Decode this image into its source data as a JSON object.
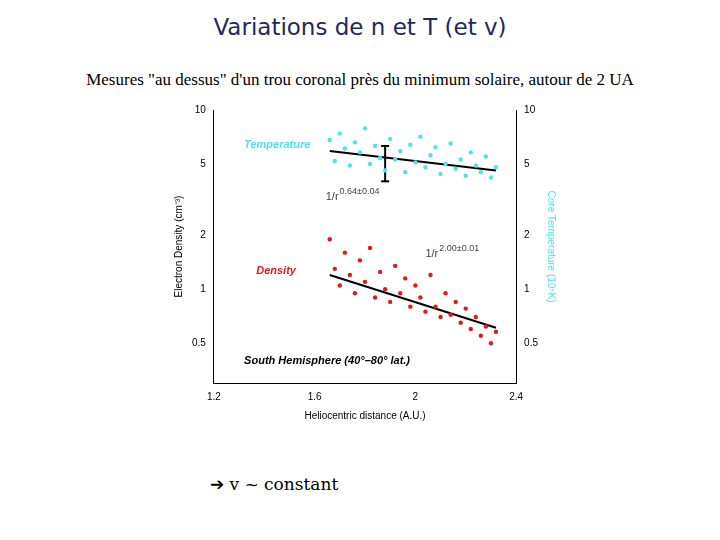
{
  "title": "Variations de n et T (et v)",
  "subtitle": "Mesures \"au dessus\" d'un trou coronal près du minimum solaire, autour de 2 UA",
  "footer": "➔ v ~ constant",
  "chart_data": {
    "type": "scatter",
    "x_label": "Heliocentric distance (A.U.)",
    "y_label": "Electron Density (cm⁻³)",
    "y2_label": "Core Temperature (10⁵K)",
    "annotation": "South Hemisphere (40°–80° lat.)",
    "xlim": [
      1.2,
      2.4
    ],
    "xticks": [
      1.2,
      1.6,
      2,
      2.4
    ],
    "ylim": [
      0.3,
      10
    ],
    "yticks": [
      0.5,
      1,
      2,
      5,
      10
    ],
    "y2lim": [
      0.3,
      10
    ],
    "y2ticks": [
      0.5,
      1,
      2,
      5,
      10
    ],
    "log": "y",
    "grid": false,
    "series": [
      {
        "name": "Temperature",
        "color": "#4fe3ea",
        "axis": "y2",
        "marker": "dot",
        "x": [
          1.66,
          1.68,
          1.7,
          1.72,
          1.74,
          1.76,
          1.78,
          1.8,
          1.82,
          1.84,
          1.86,
          1.88,
          1.9,
          1.92,
          1.94,
          1.96,
          1.98,
          2.0,
          2.02,
          2.04,
          2.06,
          2.08,
          2.1,
          2.12,
          2.14,
          2.16,
          2.18,
          2.2,
          2.22,
          2.24,
          2.26,
          2.28,
          2.3,
          2.32
        ],
        "values": [
          6.8,
          5.2,
          7.4,
          6.1,
          4.9,
          6.6,
          5.8,
          7.9,
          5.0,
          6.3,
          5.4,
          4.6,
          6.9,
          5.3,
          5.9,
          4.5,
          6.4,
          5.1,
          7.1,
          4.8,
          5.6,
          6.2,
          4.4,
          5.0,
          6.5,
          4.7,
          5.3,
          4.3,
          5.8,
          4.9,
          4.5,
          5.5,
          4.2,
          4.8
        ],
        "fit": {
          "x": [
            1.66,
            2.32
          ],
          "values": [
            5.9,
            4.6
          ],
          "label": "1/r",
          "exponent": "0.64±0.04"
        },
        "error_bar": {
          "x": 1.88,
          "low": 4.0,
          "high": 6.3
        }
      },
      {
        "name": "Density",
        "color": "#e8161b",
        "axis": "y",
        "marker": "dot",
        "x": [
          1.66,
          1.68,
          1.7,
          1.72,
          1.74,
          1.76,
          1.78,
          1.8,
          1.82,
          1.84,
          1.86,
          1.88,
          1.9,
          1.92,
          1.94,
          1.96,
          1.98,
          2.0,
          2.02,
          2.04,
          2.06,
          2.08,
          2.1,
          2.12,
          2.14,
          2.16,
          2.18,
          2.2,
          2.22,
          2.24,
          2.26,
          2.28,
          2.3,
          2.32
        ],
        "values": [
          1.9,
          1.3,
          1.05,
          1.6,
          1.2,
          0.95,
          1.45,
          1.1,
          1.7,
          0.9,
          1.25,
          1.0,
          0.85,
          1.35,
          0.95,
          1.15,
          0.8,
          1.05,
          0.9,
          0.75,
          1.2,
          0.8,
          0.7,
          0.95,
          0.72,
          0.85,
          0.65,
          0.78,
          0.6,
          0.7,
          0.55,
          0.62,
          0.5,
          0.58
        ],
        "fit": {
          "x": [
            1.66,
            2.32
          ],
          "values": [
            1.2,
            0.61
          ],
          "label": "1/r",
          "exponent": "2.00±0.01"
        }
      }
    ]
  }
}
